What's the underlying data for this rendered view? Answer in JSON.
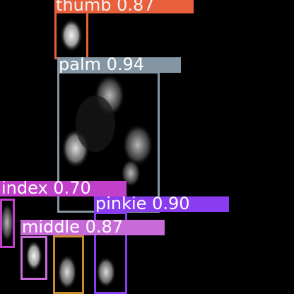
{
  "image": {
    "description_type": "hand-detection",
    "background": "#000000"
  },
  "detections": [
    {
      "label": "thumb 0.87",
      "color": "#e8603c",
      "text_color": "#f2f2f2"
    },
    {
      "label": "palm 0.94",
      "color": "#8496a3",
      "text_color": "#ffffff"
    },
    {
      "label": "index 0.70",
      "color": "#c13fc9",
      "text_color": "#ffffff"
    },
    {
      "label": "pinkie 0.90",
      "color": "#8a3df0",
      "text_color": "#ffffff"
    },
    {
      "label": "middle 0.87",
      "color": "#c86bd9",
      "text_color": "#ffffff"
    },
    {
      "label": "",
      "color": "#c88a2a",
      "text_color": "#ffffff"
    }
  ]
}
